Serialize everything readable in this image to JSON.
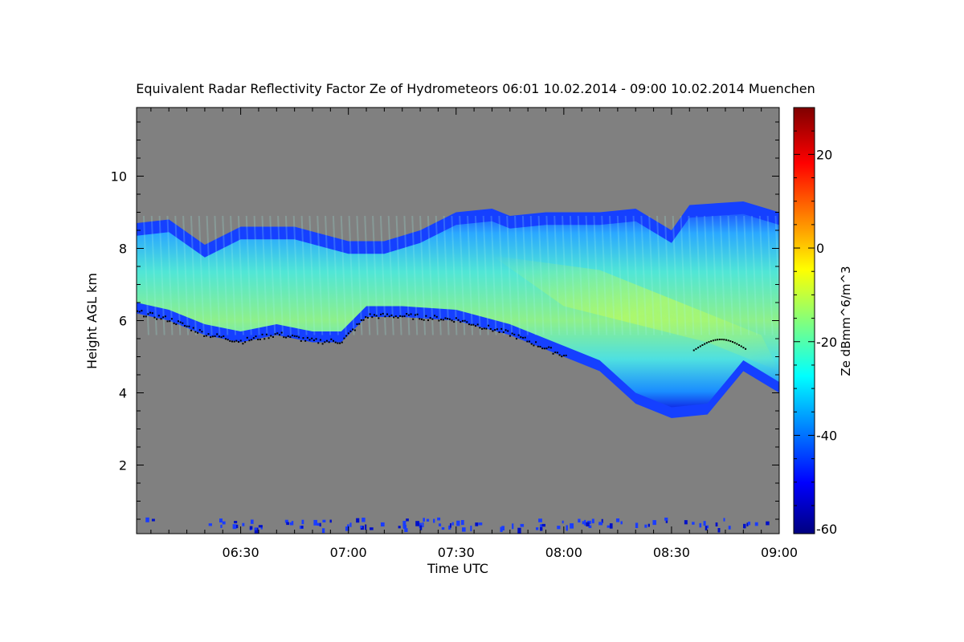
{
  "chart_data": {
    "type": "heatmap",
    "title": "Equivalent Radar Reflectivity Factor Ze of Hydrometeors   06:01 10.02.2014 - 09:00 10.02.2014 Muenchen",
    "xlabel": "Time UTC",
    "ylabel": "Height AGL km",
    "xlim": [
      "06:01",
      "09:00"
    ],
    "ylim": [
      0.1,
      11.9
    ],
    "x_ticks": [
      "06:30",
      "07:00",
      "07:30",
      "08:00",
      "08:30",
      "09:00"
    ],
    "y_ticks": [
      2,
      4,
      6,
      8,
      10
    ],
    "background_color": "#808080",
    "colorbar": {
      "label": "Ze dBmm^6/m^3",
      "min": -61,
      "max": 30,
      "ticks": [
        -60,
        -40,
        -20,
        0,
        20
      ],
      "colormap": "jet"
    },
    "cloud_top_km": [
      [
        "06:01",
        8.7
      ],
      [
        "06:10",
        8.8
      ],
      [
        "06:20",
        8.1
      ],
      [
        "06:30",
        8.6
      ],
      [
        "06:45",
        8.6
      ],
      [
        "07:00",
        8.2
      ],
      [
        "07:10",
        8.2
      ],
      [
        "07:20",
        8.5
      ],
      [
        "07:30",
        9.0
      ],
      [
        "07:40",
        9.1
      ],
      [
        "07:45",
        8.9
      ],
      [
        "07:55",
        9.0
      ],
      [
        "08:10",
        9.0
      ],
      [
        "08:20",
        9.1
      ],
      [
        "08:30",
        8.5
      ],
      [
        "08:35",
        9.2
      ],
      [
        "08:50",
        9.3
      ],
      [
        "09:00",
        9.0
      ]
    ],
    "cloud_base_km": [
      [
        "06:01",
        6.2
      ],
      [
        "06:10",
        6.0
      ],
      [
        "06:20",
        5.6
      ],
      [
        "06:30",
        5.4
      ],
      [
        "06:40",
        5.6
      ],
      [
        "06:50",
        5.4
      ],
      [
        "06:58",
        5.4
      ],
      [
        "07:05",
        6.1
      ],
      [
        "07:15",
        6.1
      ],
      [
        "07:30",
        6.0
      ],
      [
        "07:45",
        5.6
      ],
      [
        "08:00",
        5.0
      ],
      [
        "08:10",
        4.6
      ],
      [
        "08:20",
        3.7
      ],
      [
        "08:30",
        3.3
      ],
      [
        "08:40",
        3.4
      ],
      [
        "08:50",
        4.6
      ],
      [
        "09:00",
        4.0
      ]
    ]
  }
}
